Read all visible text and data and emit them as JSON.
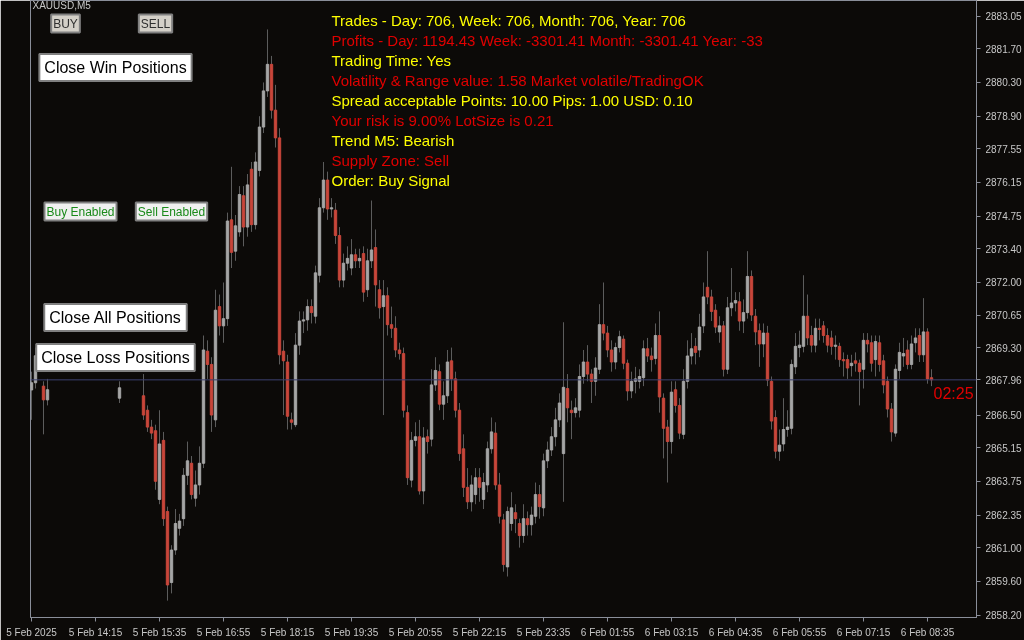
{
  "chart_data": {
    "type": "candlestick",
    "title": "XAUUSD,M5",
    "categories": [
      "5 Feb 2025",
      null,
      null,
      null,
      null,
      null,
      null,
      null,
      null,
      null,
      null,
      null,
      null,
      null,
      null,
      null,
      "5 Feb 14:15",
      null,
      null,
      null,
      null,
      null,
      null,
      null,
      null,
      null,
      null,
      null,
      null,
      null,
      null,
      null,
      "5 Feb 15:35",
      null,
      null,
      null,
      null,
      null,
      null,
      null,
      null,
      null,
      null,
      null,
      null,
      null,
      null,
      null,
      "5 Feb 16:55",
      null,
      null,
      null,
      null,
      null,
      null,
      null,
      null,
      null,
      null,
      null,
      null,
      null,
      null,
      null,
      "5 Feb 18:15",
      null,
      null,
      null,
      null,
      null,
      null,
      null,
      null,
      null,
      null,
      null,
      null,
      null,
      null,
      null,
      "5 Feb 19:35",
      null,
      null,
      null,
      null,
      null,
      null,
      null,
      null,
      null,
      null,
      null,
      null,
      null,
      null,
      null,
      "5 Feb 20:55",
      null,
      null,
      null,
      null,
      null,
      null,
      null,
      null,
      null,
      null,
      null,
      null,
      null,
      null,
      null,
      "5 Feb 22:15",
      null,
      null,
      null,
      null,
      null,
      null,
      null,
      null,
      null,
      null,
      null,
      null,
      null,
      null,
      null,
      "5 Feb 23:35",
      null,
      null,
      null,
      null,
      null,
      null,
      null,
      null,
      null,
      null,
      null,
      null,
      null,
      null,
      null,
      "6 Feb 01:55",
      null,
      null,
      null,
      null,
      null,
      null,
      null,
      null,
      null,
      null,
      null,
      null,
      null,
      null,
      null,
      "6 Feb 03:15",
      null,
      null,
      null,
      null,
      null,
      null,
      null,
      null,
      null,
      null,
      null,
      null,
      null,
      null,
      null,
      "6 Feb 04:35",
      null,
      null,
      null,
      null,
      null,
      null,
      null,
      null,
      null,
      null,
      null,
      null,
      null,
      null,
      null,
      "6 Feb 05:55",
      null,
      null,
      null,
      null,
      null,
      null,
      null,
      null,
      null,
      null,
      null,
      null,
      null,
      null,
      null,
      "6 Feb 07:15",
      null,
      null,
      null,
      null,
      null,
      null,
      null,
      null,
      null,
      null,
      null,
      null,
      null,
      null,
      null,
      "6 Feb 08:35",
      null
    ],
    "ohlc": [
      [
        2867.54,
        2868.3,
        2866.3,
        2867.84
      ],
      [
        2867.84,
        2869.3,
        2867.6,
        2868.96
      ],
      null,
      [
        2867.7,
        2867.9,
        2865.7,
        2867.13
      ],
      [
        2867.13,
        2868.0,
        2866.9,
        2867.55
      ],
      null,
      null,
      null,
      null,
      null,
      null,
      null,
      null,
      null,
      null,
      null,
      null,
      null,
      null,
      null,
      null,
      null,
      [
        2867.2,
        2867.9,
        2867.0,
        2867.63
      ],
      null,
      null,
      null,
      null,
      null,
      [
        2867.3,
        2868.2,
        2866.3,
        2866.5
      ],
      [
        2866.7,
        2866.9,
        2865.8,
        2866.0
      ],
      [
        2866.0,
        2866.3,
        2865.5,
        2865.75
      ],
      [
        2865.85,
        2866.1,
        2863.4,
        2863.75
      ],
      [
        2863.0,
        2866.7,
        2862.8,
        2865.3
      ],
      [
        2865.45,
        2865.8,
        2861.9,
        2862.2
      ],
      [
        2862.5,
        2862.7,
        2858.8,
        2859.45
      ],
      [
        2859.55,
        2861.1,
        2859.1,
        2860.9
      ],
      [
        2860.9,
        2862.6,
        2860.7,
        2862.0
      ],
      [
        2861.8,
        2862.4,
        2861.5,
        2862.1
      ],
      [
        2862.2,
        2864.3,
        2861.9,
        2864.0
      ],
      [
        2864.0,
        2865.4,
        2863.6,
        2864.6
      ],
      [
        2864.5,
        2864.8,
        2863.0,
        2863.2
      ],
      [
        2863.05,
        2864.2,
        2862.7,
        2863.6
      ],
      [
        2863.6,
        2865.2,
        2863.2,
        2864.5
      ],
      [
        2864.5,
        2869.8,
        2864.3,
        2869.2
      ],
      [
        2869.15,
        2869.6,
        2868.0,
        2868.6
      ],
      [
        2868.6,
        2868.9,
        2865.8,
        2866.5
      ],
      [
        2866.3,
        2871.7,
        2866.0,
        2870.85
      ],
      [
        2871.0,
        2871.5,
        2869.8,
        2870.2
      ],
      [
        2870.2,
        2872.0,
        2869.5,
        2870.5
      ],
      [
        2870.5,
        2874.9,
        2870.2,
        2874.55
      ],
      [
        2874.6,
        2876.8,
        2872.6,
        2873.25
      ],
      [
        2873.3,
        2874.8,
        2872.9,
        2874.35
      ],
      [
        2874.1,
        2876.0,
        2873.9,
        2875.65
      ],
      [
        2875.6,
        2876.0,
        2873.5,
        2874.3
      ],
      [
        2874.3,
        2876.5,
        2873.9,
        2876.05
      ],
      [
        2876.7,
        2877.0,
        2874.1,
        2874.4
      ],
      [
        2874.4,
        2877.4,
        2874.2,
        2877.0
      ],
      [
        2876.65,
        2878.9,
        2876.4,
        2878.45
      ],
      [
        2878.45,
        2880.3,
        2878.2,
        2879.95
      ],
      [
        2879.95,
        2882.5,
        2879.7,
        2881.05
      ],
      [
        2881.05,
        2881.4,
        2878.8,
        2879.15
      ],
      [
        2879.15,
        2880.2,
        2877.6,
        2878.0
      ],
      [
        2878.0,
        2878.4,
        2868.6,
        2869.0
      ],
      [
        2869.15,
        2869.6,
        2866.5,
        2868.75
      ],
      [
        2868.7,
        2869.0,
        2865.9,
        2866.45
      ],
      [
        2866.3,
        2866.6,
        2865.9,
        2866.2
      ],
      [
        2866.1,
        2869.9,
        2866.0,
        2869.4
      ],
      [
        2869.4,
        2870.8,
        2869.0,
        2870.4
      ],
      [
        2870.4,
        2870.8,
        2869.9,
        2870.45
      ],
      [
        2870.45,
        2871.3,
        2870.0,
        2871.0
      ],
      [
        2871.0,
        2871.3,
        2870.3,
        2870.75
      ],
      [
        2870.6,
        2872.7,
        2870.3,
        2872.4
      ],
      [
        2872.3,
        2875.5,
        2872.0,
        2875.1
      ],
      [
        2875.1,
        2877.0,
        2874.9,
        2876.25
      ],
      [
        2876.25,
        2876.6,
        2874.6,
        2875.05
      ],
      [
        2875.05,
        2875.5,
        2874.7,
        2875.1
      ],
      [
        2875.0,
        2875.3,
        2873.6,
        2873.95
      ],
      [
        2873.95,
        2874.3,
        2871.8,
        2872.1
      ],
      [
        2872.1,
        2873.2,
        2871.8,
        2872.8
      ],
      [
        2872.8,
        2873.5,
        2872.5,
        2873.0
      ],
      [
        2872.6,
        2873.8,
        2872.3,
        2873.15
      ],
      [
        2873.15,
        2873.4,
        2872.6,
        2872.9
      ],
      [
        2872.9,
        2873.4,
        2872.6,
        2873.0
      ],
      [
        2873.2,
        2873.5,
        2871.2,
        2871.6
      ],
      [
        2871.7,
        2873.4,
        2871.4,
        2872.9
      ],
      [
        2872.9,
        2875.4,
        2872.6,
        2873.35
      ],
      [
        2873.45,
        2874.2,
        2871.0,
        2871.9
      ],
      [
        2871.7,
        2872.1,
        2870.5,
        2870.95
      ],
      [
        2871.0,
        2872.1,
        2866.5,
        2871.45
      ],
      [
        2871.45,
        2871.8,
        2869.8,
        2870.25
      ],
      [
        2870.25,
        2871.0,
        2869.7,
        2870.1
      ],
      [
        2870.1,
        2870.6,
        2868.9,
        2869.2
      ],
      [
        2869.2,
        2869.5,
        2868.8,
        2869.05
      ],
      [
        2869.05,
        2869.3,
        2866.4,
        2866.7
      ],
      [
        2866.6,
        2866.9,
        2863.6,
        2863.9
      ],
      [
        2863.8,
        2865.8,
        2863.5,
        2865.45
      ],
      [
        2865.45,
        2866.2,
        2865.2,
        2865.6
      ],
      [
        2865.6,
        2866.3,
        2863.2,
        2863.35
      ],
      [
        2863.35,
        2866.0,
        2862.8,
        2865.55
      ],
      [
        2865.6,
        2865.9,
        2864.9,
        2865.4
      ],
      [
        2865.5,
        2868.4,
        2865.2,
        2867.75
      ],
      [
        2867.75,
        2868.9,
        2867.5,
        2868.35
      ],
      [
        2868.3,
        2868.6,
        2866.7,
        2866.95
      ],
      [
        2866.95,
        2867.9,
        2866.3,
        2867.3
      ],
      [
        2867.3,
        2869.2,
        2867.0,
        2868.7
      ],
      [
        2868.75,
        2869.3,
        2867.5,
        2868.0
      ],
      [
        2868.0,
        2868.3,
        2866.4,
        2866.7
      ],
      [
        2866.7,
        2867.0,
        2864.6,
        2864.9
      ],
      [
        2865.1,
        2865.7,
        2863.1,
        2863.5
      ],
      [
        2863.5,
        2864.3,
        2862.6,
        2862.9
      ],
      [
        2862.9,
        2864.0,
        2862.5,
        2863.6
      ],
      [
        2863.2,
        2864.3,
        2862.8,
        2863.9
      ],
      [
        2863.9,
        2864.3,
        2862.9,
        2863.5
      ],
      [
        2863.0,
        2864.1,
        2862.6,
        2863.7
      ],
      [
        2863.6,
        2865.4,
        2863.3,
        2865.1
      ],
      [
        2865.1,
        2866.4,
        2864.9,
        2865.8
      ],
      [
        2865.75,
        2866.2,
        2863.4,
        2863.6
      ],
      [
        2863.6,
        2864.1,
        2862.0,
        2862.3
      ],
      [
        2862.15,
        2862.4,
        2860.0,
        2860.3
      ],
      [
        2860.2,
        2862.7,
        2859.8,
        2862.5
      ],
      [
        2862.0,
        2863.3,
        2861.7,
        2862.65
      ],
      [
        2862.45,
        2862.8,
        2861.6,
        2862.2
      ],
      [
        2862.0,
        2862.2,
        2861.0,
        2861.5
      ],
      [
        2861.5,
        2862.8,
        2861.2,
        2862.2
      ],
      [
        2862.2,
        2862.5,
        2861.5,
        2861.95
      ],
      [
        2861.95,
        2862.7,
        2861.5,
        2862.35
      ],
      [
        2862.3,
        2863.7,
        2862.0,
        2863.2
      ],
      [
        2863.2,
        2863.6,
        2862.2,
        2862.7
      ],
      [
        2862.65,
        2864.9,
        2862.3,
        2864.6
      ],
      [
        2864.6,
        2865.4,
        2864.3,
        2865.05
      ],
      [
        2865.05,
        2866.0,
        2864.8,
        2865.6
      ],
      [
        2865.6,
        2866.8,
        2865.2,
        2866.3
      ],
      [
        2866.3,
        2867.4,
        2866.0,
        2867.0
      ],
      [
        2864.9,
        2870.35,
        2862.9,
        2867.65
      ],
      [
        2867.6,
        2868.2,
        2866.2,
        2866.8
      ],
      [
        2866.7,
        2867.1,
        2865.5,
        2866.6
      ],
      [
        2866.6,
        2867.2,
        2866.4,
        2866.8
      ],
      [
        2866.7,
        2868.6,
        2866.4,
        2868.1
      ],
      [
        2868.1,
        2869.2,
        2867.8,
        2868.7
      ],
      [
        2868.7,
        2869.4,
        2867.9,
        2868.2
      ],
      [
        2868.2,
        2868.4,
        2867.0,
        2867.9
      ],
      [
        2867.9,
        2868.9,
        2867.3,
        2868.45
      ],
      [
        2868.4,
        2871.1,
        2868.2,
        2870.25
      ],
      [
        2870.25,
        2872.0,
        2869.6,
        2869.9
      ],
      [
        2869.9,
        2870.2,
        2868.9,
        2869.2
      ],
      [
        2869.2,
        2869.6,
        2868.3,
        2868.7
      ],
      [
        2868.7,
        2869.5,
        2868.4,
        2869.3
      ],
      [
        2869.3,
        2870.0,
        2869.1,
        2869.75
      ],
      [
        2869.65,
        2869.8,
        2868.4,
        2868.65
      ],
      [
        2868.65,
        2868.8,
        2867.1,
        2867.5
      ],
      [
        2867.5,
        2868.3,
        2867.2,
        2867.9
      ],
      [
        2867.9,
        2868.5,
        2867.4,
        2868.0
      ],
      [
        2867.9,
        2868.4,
        2867.6,
        2868.1
      ],
      [
        2868.05,
        2869.6,
        2867.7,
        2869.25
      ],
      [
        2869.25,
        2869.7,
        2868.7,
        2868.95
      ],
      [
        2868.95,
        2869.3,
        2868.3,
        2868.8
      ],
      [
        2868.85,
        2870.3,
        2868.6,
        2869.8
      ],
      [
        2869.8,
        2870.8,
        2866.6,
        2867.25
      ],
      [
        2867.2,
        2867.4,
        2864.7,
        2865.95
      ],
      [
        2866.0,
        2866.3,
        2863.7,
        2865.4
      ],
      [
        2865.4,
        2867.9,
        2864.9,
        2867.45
      ],
      [
        2867.55,
        2867.9,
        2866.6,
        2866.9
      ],
      [
        2866.9,
        2867.2,
        2865.5,
        2865.75
      ],
      [
        2865.7,
        2868.4,
        2865.5,
        2867.9
      ],
      [
        2867.9,
        2869.6,
        2867.6,
        2868.95
      ],
      [
        2868.95,
        2869.9,
        2868.6,
        2869.25
      ],
      [
        2869.35,
        2869.7,
        2868.6,
        2869.1
      ],
      [
        2869.2,
        2870.7,
        2868.9,
        2870.15
      ],
      [
        2870.2,
        2872.0,
        2869.9,
        2871.4
      ],
      [
        2871.8,
        2873.3,
        2871.1,
        2871.4
      ],
      [
        2871.4,
        2871.7,
        2870.4,
        2870.8
      ],
      [
        2870.85,
        2871.1,
        2869.9,
        2870.15
      ],
      [
        2869.95,
        2870.6,
        2869.5,
        2870.2
      ],
      [
        2870.2,
        2870.4,
        2868.1,
        2868.4
      ],
      [
        2868.4,
        2871.4,
        2868.2,
        2870.95
      ],
      [
        2870.95,
        2872.6,
        2870.6,
        2871.15
      ],
      [
        2871.15,
        2871.6,
        2870.8,
        2871.25
      ],
      [
        2871.2,
        2871.6,
        2870.0,
        2870.4
      ],
      [
        2870.4,
        2871.3,
        2869.9,
        2870.75
      ],
      [
        2870.75,
        2873.3,
        2870.5,
        2872.25
      ],
      [
        2872.25,
        2872.5,
        2870.4,
        2870.65
      ],
      [
        2870.6,
        2870.9,
        2869.4,
        2869.95
      ],
      [
        2870.0,
        2870.3,
        2868.5,
        2869.45
      ],
      [
        2869.45,
        2870.3,
        2868.9,
        2869.9
      ],
      [
        2869.9,
        2870.2,
        2867.7,
        2867.95
      ],
      [
        2867.9,
        2868.1,
        2865.9,
        2866.25
      ],
      [
        2866.4,
        2866.7,
        2864.7,
        2865.0
      ],
      [
        2865.0,
        2865.9,
        2864.6,
        2865.25
      ],
      [
        2865.3,
        2867.2,
        2865.0,
        2865.9
      ],
      [
        2865.9,
        2866.7,
        2865.6,
        2866.0
      ],
      [
        2865.95,
        2868.8,
        2865.7,
        2868.6
      ],
      [
        2868.5,
        2869.9,
        2868.2,
        2869.35
      ],
      [
        2869.3,
        2870.0,
        2868.9,
        2869.4
      ],
      [
        2869.35,
        2872.3,
        2869.1,
        2870.6
      ],
      [
        2870.6,
        2871.5,
        2869.4,
        2869.7
      ],
      [
        2869.8,
        2870.2,
        2869.1,
        2869.4
      ],
      [
        2869.4,
        2870.5,
        2869.1,
        2870.1
      ],
      [
        2870.1,
        2870.5,
        2869.6,
        2870.05
      ],
      [
        2870.2,
        2870.4,
        2869.5,
        2869.8
      ],
      [
        2869.8,
        2870.1,
        2869.1,
        2869.4
      ],
      [
        2869.7,
        2870.0,
        2869.0,
        2869.35
      ],
      [
        2869.35,
        2869.8,
        2868.8,
        2869.4
      ],
      [
        2869.35,
        2869.5,
        2868.5,
        2868.8
      ],
      [
        2868.8,
        2869.1,
        2868.1,
        2868.75
      ],
      [
        2868.8,
        2869.0,
        2868.0,
        2868.45
      ],
      [
        2868.55,
        2869.0,
        2868.1,
        2868.65
      ],
      [
        2868.75,
        2869.1,
        2868.3,
        2868.65
      ],
      [
        2868.65,
        2868.8,
        2866.9,
        2868.3
      ],
      [
        2868.4,
        2869.9,
        2867.6,
        2869.6
      ],
      [
        2869.6,
        2869.9,
        2869.1,
        2869.45
      ],
      [
        2869.5,
        2869.8,
        2868.3,
        2868.65
      ],
      [
        2868.8,
        2869.8,
        2868.1,
        2869.55
      ],
      [
        2869.5,
        2869.8,
        2868.3,
        2868.6
      ],
      [
        2868.75,
        2869.0,
        2867.4,
        2867.75
      ],
      [
        2867.9,
        2868.1,
        2866.4,
        2866.75
      ],
      [
        2866.75,
        2867.0,
        2865.4,
        2865.8
      ],
      [
        2865.75,
        2868.6,
        2865.6,
        2868.4
      ],
      [
        2868.35,
        2869.5,
        2868.0,
        2869.1
      ],
      [
        2868.95,
        2869.7,
        2868.5,
        2869.05
      ],
      [
        2869.2,
        2869.6,
        2868.4,
        2868.6
      ],
      [
        2868.6,
        2869.8,
        2868.4,
        2869.45
      ],
      [
        2869.5,
        2870.1,
        2869.1,
        2869.7
      ],
      [
        2869.8,
        2870.1,
        2868.7,
        2869.0
      ],
      [
        2869.0,
        2871.35,
        2868.7,
        2869.95
      ],
      [
        2869.95,
        2870.1,
        2867.8,
        2868.0
      ],
      [
        2868.05,
        2868.4,
        2867.7,
        2867.96
      ]
    ],
    "colors": [
      "#a6a6a6",
      "#a6a6a6",
      "#c8463a",
      "#c8463a",
      "#a6a6a6",
      "#a6a6a6",
      "#a6a6a6",
      "#c8463a",
      "#a6a6a6",
      "#a6a6a6",
      "#c8463a",
      "#a6a6a6",
      "#c8463a",
      "#a6a6a6",
      "#a6a6a6",
      "#c8463a",
      "#c8463a",
      "#a6a6a6",
      "#a6a6a6",
      "#a6a6a6",
      "#c8463a",
      "#c8463a",
      "#a6a6a6",
      "#a6a6a6",
      "#a6a6a6",
      "#a6a6a6",
      "#c8463a",
      "#c8463a",
      "#c8463a",
      "#c8463a",
      "#c8463a",
      "#c8463a",
      "#a6a6a6",
      "#c8463a",
      "#c8463a",
      "#a6a6a6",
      "#a6a6a6",
      "#a6a6a6",
      "#a6a6a6",
      "#a6a6a6",
      "#c8463a",
      "#a6a6a6",
      "#a6a6a6",
      "#a6a6a6",
      "#c8463a",
      "#c8463a",
      "#a6a6a6",
      "#c8463a",
      "#a6a6a6",
      "#a6a6a6",
      "#c8463a",
      "#a6a6a6",
      "#a6a6a6",
      "#c8463a",
      "#a6a6a6",
      "#c8463a",
      "#a6a6a6",
      "#a6a6a6",
      "#a6a6a6",
      "#a6a6a6",
      "#c8463a",
      "#c8463a",
      "#c8463a",
      "#c8463a",
      "#c8463a",
      "#c8463a",
      "#a6a6a6",
      "#a6a6a6",
      "#a6a6a6",
      "#a6a6a6",
      "#c8463a",
      "#a6a6a6",
      "#a6a6a6",
      "#a6a6a6",
      "#c8463a",
      "#a6a6a6",
      "#c8463a",
      "#c8463a",
      "#a6a6a6",
      "#a6a6a6",
      "#a6a6a6",
      "#c8463a",
      "#a6a6a6",
      "#c8463a",
      "#a6a6a6",
      "#a6a6a6",
      "#c8463a",
      "#c8463a",
      "#a6a6a6",
      "#c8463a",
      "#c8463a",
      "#c8463a",
      "#c8463a",
      "#c8463a",
      "#c8463a",
      "#a6a6a6",
      "#a6a6a6",
      "#c8463a",
      "#a6a6a6",
      "#c8463a",
      "#a6a6a6",
      "#a6a6a6",
      "#c8463a",
      "#a6a6a6",
      "#a6a6a6",
      "#c8463a",
      "#c8463a",
      "#c8463a",
      "#c8463a",
      "#c8463a",
      "#a6a6a6",
      "#a6a6a6",
      "#c8463a",
      "#a6a6a6",
      "#a6a6a6",
      "#a6a6a6",
      "#c8463a",
      "#c8463a",
      "#c8463a",
      "#a6a6a6",
      "#a6a6a6",
      "#c8463a",
      "#c8463a",
      "#a6a6a6",
      "#c8463a",
      "#a6a6a6",
      "#a6a6a6",
      "#c8463a",
      "#a6a6a6",
      "#a6a6a6",
      "#a6a6a6",
      "#a6a6a6",
      "#a6a6a6",
      "#a6a6a6",
      "#c8463a",
      "#c8463a",
      "#a6a6a6",
      "#a6a6a6",
      "#a6a6a6",
      "#c8463a",
      "#c8463a",
      "#a6a6a6",
      "#a6a6a6",
      "#c8463a",
      "#c8463a",
      "#c8463a",
      "#a6a6a6",
      "#a6a6a6",
      "#c8463a",
      "#c8463a",
      "#a6a6a6",
      "#a6a6a6",
      "#a6a6a6",
      "#a6a6a6",
      "#c8463a",
      "#c8463a",
      "#a6a6a6",
      "#c8463a",
      "#c8463a",
      "#c8463a",
      "#a6a6a6",
      "#c8463a",
      "#c8463a",
      "#a6a6a6",
      "#a6a6a6",
      "#a6a6a6",
      "#c8463a",
      "#a6a6a6",
      "#a6a6a6",
      "#c8463a",
      "#c8463a",
      "#c8463a",
      "#a6a6a6",
      "#c8463a",
      "#a6a6a6",
      "#a6a6a6",
      "#a6a6a6",
      "#c8463a",
      "#a6a6a6",
      "#a6a6a6",
      "#c8463a",
      "#c8463a",
      "#c8463a",
      "#a6a6a6",
      "#c8463a",
      "#c8463a",
      "#c8463a",
      "#a6a6a6",
      "#a6a6a6",
      "#a6a6a6",
      "#a6a6a6",
      "#a6a6a6",
      "#a6a6a6",
      "#a6a6a6",
      "#c8463a",
      "#c8463a",
      "#a6a6a6",
      "#c8463a",
      "#c8463a",
      "#c8463a",
      "#c8463a",
      "#a6a6a6",
      "#c8463a",
      "#c8463a",
      "#c8463a",
      "#a6a6a6",
      "#c8463a",
      "#c8463a",
      "#a6a6a6",
      "#c8463a",
      "#c8463a",
      "#a6a6a6",
      "#c8463a",
      "#c8463a",
      "#c8463a",
      "#c8463a",
      "#a6a6a6",
      "#a6a6a6",
      "#a6a6a6",
      "#c8463a",
      "#a6a6a6",
      "#a6a6a6",
      "#c8463a",
      "#a6a6a6",
      "#c8463a",
      "#c8463a"
    ],
    "ylim": [
      2858.1,
      2883.7
    ],
    "yticks": [
      {
        "value": 2883.05,
        "label": "2883.05"
      },
      {
        "value": 2881.7,
        "label": "2881.70"
      },
      {
        "value": 2880.3,
        "label": "2880.30"
      },
      {
        "value": 2878.9,
        "label": "2878.90"
      },
      {
        "value": 2877.55,
        "label": "2877.55"
      },
      {
        "value": 2876.15,
        "label": "2876.15"
      },
      {
        "value": 2874.75,
        "label": "2874.75"
      },
      {
        "value": 2873.4,
        "label": "2873.40"
      },
      {
        "value": 2872.0,
        "label": "2872.00"
      },
      {
        "value": 2870.65,
        "label": "2870.65"
      },
      {
        "value": 2869.3,
        "label": "2869.30"
      },
      {
        "value": 2866.5,
        "label": "2866.50"
      },
      {
        "value": 2865.15,
        "label": "2865.15"
      },
      {
        "value": 2863.75,
        "label": "2863.75"
      },
      {
        "value": 2862.35,
        "label": "2862.35"
      },
      {
        "value": 2861.0,
        "label": "2861.00"
      },
      {
        "value": 2859.6,
        "label": "2859.60"
      },
      {
        "value": 2858.2,
        "label": "2858.20"
      }
    ],
    "ref_lines": [
      {
        "axis": "y",
        "value": 2867.96,
        "label": "2867.96",
        "color": "#3c4170"
      }
    ],
    "annotations": [
      "BUY",
      "SELL",
      "Close Win Positions",
      "Buy Enabled",
      "Sell Enabled",
      "Close All Positions",
      "Close Loss Positions",
      "Trades - Day: 706, Week: 706, Month: 706, Year: 706",
      "Profits - Day: 1194.43 Week: -3301.41 Month: -3301.41 Year: -33",
      "Trading Time: Yes",
      "Volatility & Range value: 1.58   Market volatile/TradingOK",
      "Spread acceptable  Points: 10.00  Pips: 1.00  USD: 0.10",
      "Your risk is 9.00%  LotSize is 0.21",
      "Trend M5: Bearish",
      "Supply Zone: Sell",
      "Order: Buy Signal",
      "02:25"
    ]
  }
}
